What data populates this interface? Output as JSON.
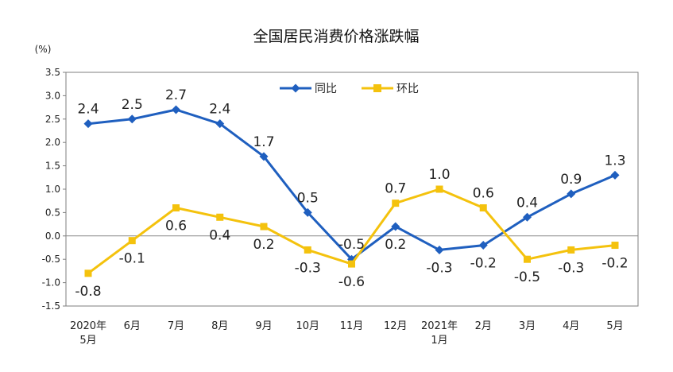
{
  "chart_data": {
    "type": "line",
    "title": "全国居民消费价格涨跌幅",
    "ylabel": "(%)",
    "ylim": [
      -1.5,
      3.5
    ],
    "yticks": [
      "3.5",
      "3.0",
      "2.5",
      "2.0",
      "1.5",
      "1.0",
      "0.5",
      "0.0",
      "-0.5",
      "-1.0",
      "-1.5"
    ],
    "categories": [
      [
        "2020年",
        "5月"
      ],
      [
        "6月"
      ],
      [
        "7月"
      ],
      [
        "8月"
      ],
      [
        "9月"
      ],
      [
        "10月"
      ],
      [
        "11月"
      ],
      [
        "12月"
      ],
      [
        "2021年",
        "1月"
      ],
      [
        "2月"
      ],
      [
        "3月"
      ],
      [
        "4月"
      ],
      [
        "5月"
      ]
    ],
    "legend_position": "top-center",
    "series": [
      {
        "name": "同比",
        "color": "#1f5fbf",
        "marker": "diamond",
        "values": [
          2.4,
          2.5,
          2.7,
          2.4,
          1.7,
          0.5,
          -0.5,
          0.2,
          -0.3,
          -0.2,
          0.4,
          0.9,
          1.3
        ],
        "labels": [
          "2.4",
          "2.5",
          "2.7",
          "2.4",
          "1.7",
          "0.5",
          "-0.5",
          "0.2",
          "-0.3",
          "-0.2",
          "0.4",
          "0.9",
          "1.3"
        ]
      },
      {
        "name": "环比",
        "color": "#f4c20d",
        "marker": "square",
        "values": [
          -0.8,
          -0.1,
          0.6,
          0.4,
          0.2,
          -0.3,
          -0.6,
          0.7,
          1.0,
          0.6,
          -0.5,
          -0.3,
          -0.2
        ],
        "labels": [
          "-0.8",
          "-0.1",
          "0.6",
          "0.4",
          "0.2",
          "-0.3",
          "-0.6",
          "0.7",
          "1.0",
          "0.6",
          "-0.5",
          "-0.3",
          "-0.2"
        ]
      }
    ]
  }
}
